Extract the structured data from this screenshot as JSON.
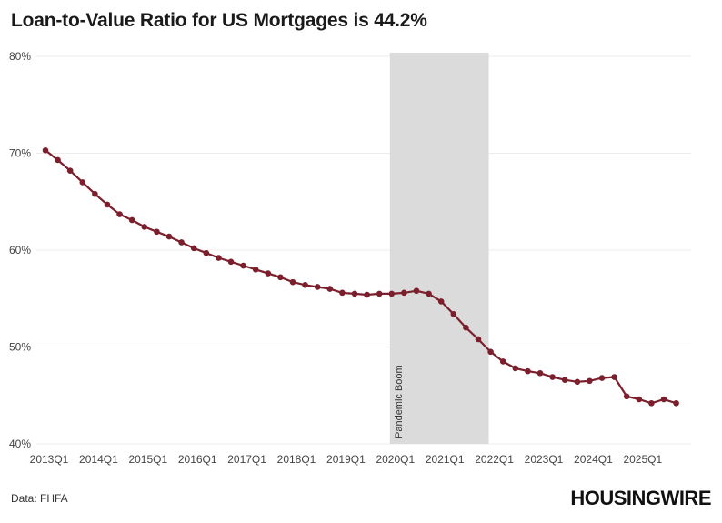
{
  "title": "Loan-to-Value Ratio for US Mortgages is 44.2%",
  "source": "Data: FHFA",
  "logo": "HOUSINGWIRE",
  "chart_data": {
    "type": "line",
    "title": "Loan-to-Value Ratio for US Mortgages is 44.2%",
    "xlabel": "",
    "ylabel": "",
    "ylim": [
      40,
      80
    ],
    "y_ticks": [
      "40%",
      "50%",
      "60%",
      "70%",
      "80%"
    ],
    "x_ticks": [
      "2013Q1",
      "2014Q1",
      "2015Q1",
      "2016Q1",
      "2017Q1",
      "2018Q1",
      "2019Q1",
      "2020Q1",
      "2021Q1",
      "2022Q1",
      "2023Q1",
      "2024Q1",
      "2025Q1"
    ],
    "grid": true,
    "line_color": "#7a1f2b",
    "shade_color": "#dcdbdb",
    "annotation": {
      "label": "Pandemic Boom",
      "start": "2020Q1",
      "end": "2021Q4"
    },
    "series": [
      {
        "values": [
          {
            "x": "2013Q1",
            "y": 70.3
          },
          {
            "x": "2013Q2",
            "y": 69.3
          },
          {
            "x": "2013Q3",
            "y": 68.2
          },
          {
            "x": "2013Q4",
            "y": 67.0
          },
          {
            "x": "2014Q1",
            "y": 65.8
          },
          {
            "x": "2014Q2",
            "y": 64.7
          },
          {
            "x": "2014Q3",
            "y": 63.7
          },
          {
            "x": "2014Q4",
            "y": 63.1
          },
          {
            "x": "2015Q1",
            "y": 62.4
          },
          {
            "x": "2015Q2",
            "y": 61.9
          },
          {
            "x": "2015Q3",
            "y": 61.4
          },
          {
            "x": "2015Q4",
            "y": 60.8
          },
          {
            "x": "2016Q1",
            "y": 60.2
          },
          {
            "x": "2016Q2",
            "y": 59.7
          },
          {
            "x": "2016Q3",
            "y": 59.2
          },
          {
            "x": "2016Q4",
            "y": 58.8
          },
          {
            "x": "2017Q1",
            "y": 58.4
          },
          {
            "x": "2017Q2",
            "y": 58.0
          },
          {
            "x": "2017Q3",
            "y": 57.6
          },
          {
            "x": "2017Q4",
            "y": 57.2
          },
          {
            "x": "2018Q1",
            "y": 56.7
          },
          {
            "x": "2018Q2",
            "y": 56.4
          },
          {
            "x": "2018Q3",
            "y": 56.2
          },
          {
            "x": "2018Q4",
            "y": 56.0
          },
          {
            "x": "2019Q1",
            "y": 55.6
          },
          {
            "x": "2019Q2",
            "y": 55.5
          },
          {
            "x": "2019Q3",
            "y": 55.4
          },
          {
            "x": "2019Q4",
            "y": 55.5
          },
          {
            "x": "2020Q1",
            "y": 55.5
          },
          {
            "x": "2020Q2",
            "y": 55.6
          },
          {
            "x": "2020Q3",
            "y": 55.8
          },
          {
            "x": "2020Q4",
            "y": 55.5
          },
          {
            "x": "2021Q1",
            "y": 54.7
          },
          {
            "x": "2021Q2",
            "y": 53.4
          },
          {
            "x": "2021Q3",
            "y": 52.0
          },
          {
            "x": "2021Q4",
            "y": 50.8
          },
          {
            "x": "2022Q1",
            "y": 49.5
          },
          {
            "x": "2022Q2",
            "y": 48.5
          },
          {
            "x": "2022Q3",
            "y": 47.8
          },
          {
            "x": "2022Q4",
            "y": 47.5
          },
          {
            "x": "2023Q1",
            "y": 47.3
          },
          {
            "x": "2023Q2",
            "y": 46.9
          },
          {
            "x": "2023Q3",
            "y": 46.6
          },
          {
            "x": "2023Q4",
            "y": 46.4
          },
          {
            "x": "2024Q1",
            "y": 46.5
          },
          {
            "x": "2024Q2",
            "y": 46.8
          },
          {
            "x": "2024Q3",
            "y": 46.9
          },
          {
            "x": "2024Q4",
            "y": 44.9
          },
          {
            "x": "2025Q1",
            "y": 44.6
          },
          {
            "x": "2025Q2",
            "y": 44.2
          },
          {
            "x": "2025Q3",
            "y": 44.6
          },
          {
            "x": "2025Q4",
            "y": 44.2
          }
        ]
      }
    ]
  }
}
